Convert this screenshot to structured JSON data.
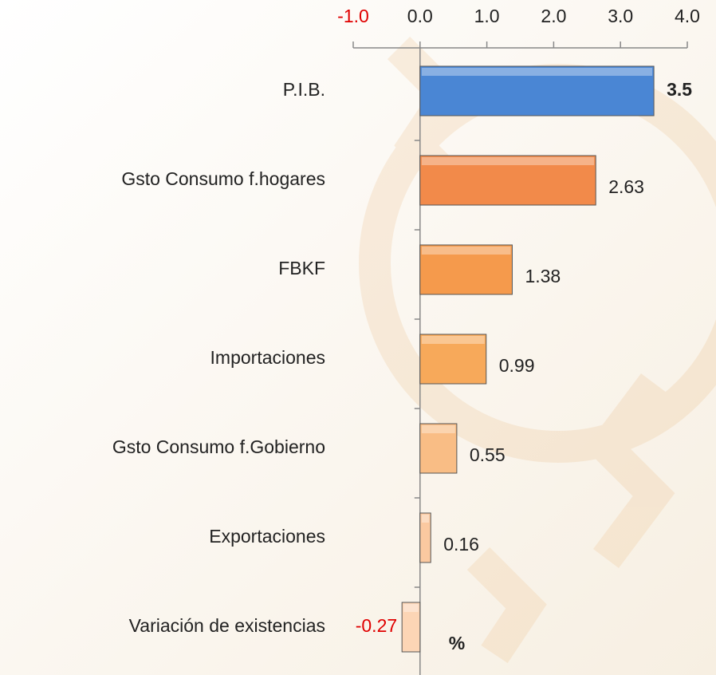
{
  "chart_data": {
    "type": "hbar",
    "categories": [
      "P.I.B.",
      "Gsto Consumo f.hogares",
      "FBKF",
      "Importaciones",
      "Gsto Consumo f.Gobierno",
      "Exportaciones",
      "Variación de existencias"
    ],
    "values": [
      3.5,
      2.63,
      1.38,
      0.99,
      0.55,
      0.16,
      -0.27
    ],
    "colors": [
      "#4a86d4",
      "#f28a4a",
      "#f59a4c",
      "#f7a95a",
      "#f9bd85",
      "#fbc9a0",
      "#fcd5b5"
    ],
    "xlim": [
      -1.0,
      4.0
    ],
    "xticks": [
      {
        "value": -1,
        "label": "-1.0"
      },
      {
        "value": 0,
        "label": "0.0"
      },
      {
        "value": 1,
        "label": "1.0"
      },
      {
        "value": 2,
        "label": "2.0"
      },
      {
        "value": 3,
        "label": "3.0"
      },
      {
        "value": 4,
        "label": "4.0"
      }
    ],
    "x_label": "%"
  }
}
